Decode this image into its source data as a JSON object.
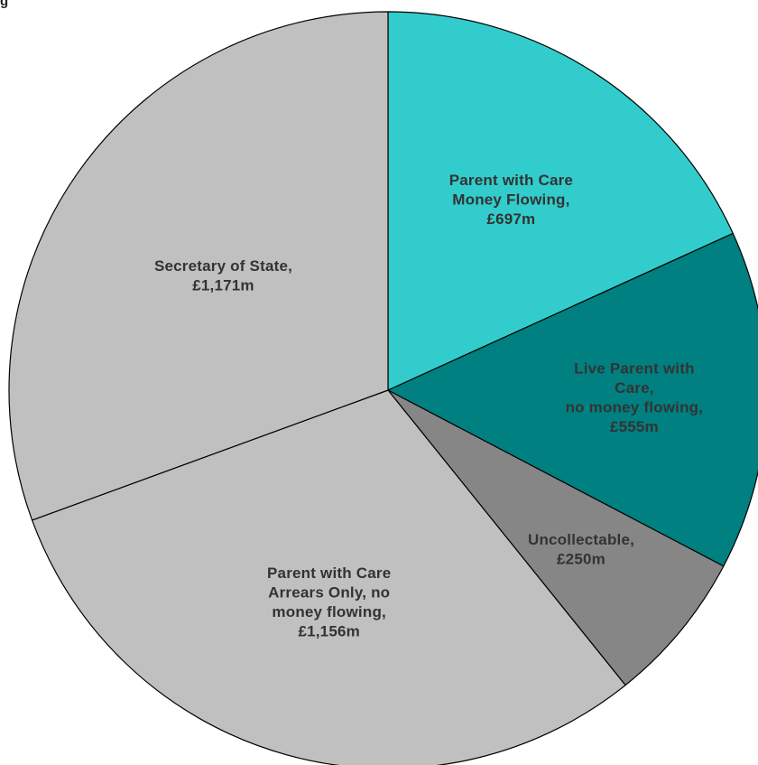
{
  "corner_mark": "g",
  "chart_data": {
    "type": "pie",
    "unit": "£m",
    "start_angle_deg": 90,
    "direction": "clockwise",
    "slices": [
      {
        "name": "Parent with Care Money Flowing",
        "value": 697,
        "label_lines": [
          "Parent with Care",
          "Money Flowing,",
          "£697m"
        ],
        "color": "#33CCCC",
        "label_color": "#333333"
      },
      {
        "name": "Live Parent with Care, no money flowing",
        "value": 555,
        "label_lines": [
          "Live Parent with",
          "Care,",
          "no money flowing,",
          "£555m"
        ],
        "color": "#008080",
        "label_color": "#333333"
      },
      {
        "name": "Uncollectable",
        "value": 250,
        "label_lines": [
          "Uncollectable,",
          "£250m"
        ],
        "color": "#868686",
        "label_color": "#333333"
      },
      {
        "name": "Parent with Care Arrears Only, no money flowing",
        "value": 1156,
        "label_lines": [
          "Parent with Care",
          "Arrears Only, no",
          "money flowing,",
          "£1,156m"
        ],
        "color": "#C0C0C0",
        "label_color": "#333333"
      },
      {
        "name": "Secretary of State",
        "value": 1171,
        "label_lines": [
          "Secretary of State,",
          "£1,171m"
        ],
        "color": "#C0C0C0",
        "label_color": "#333333"
      }
    ]
  }
}
